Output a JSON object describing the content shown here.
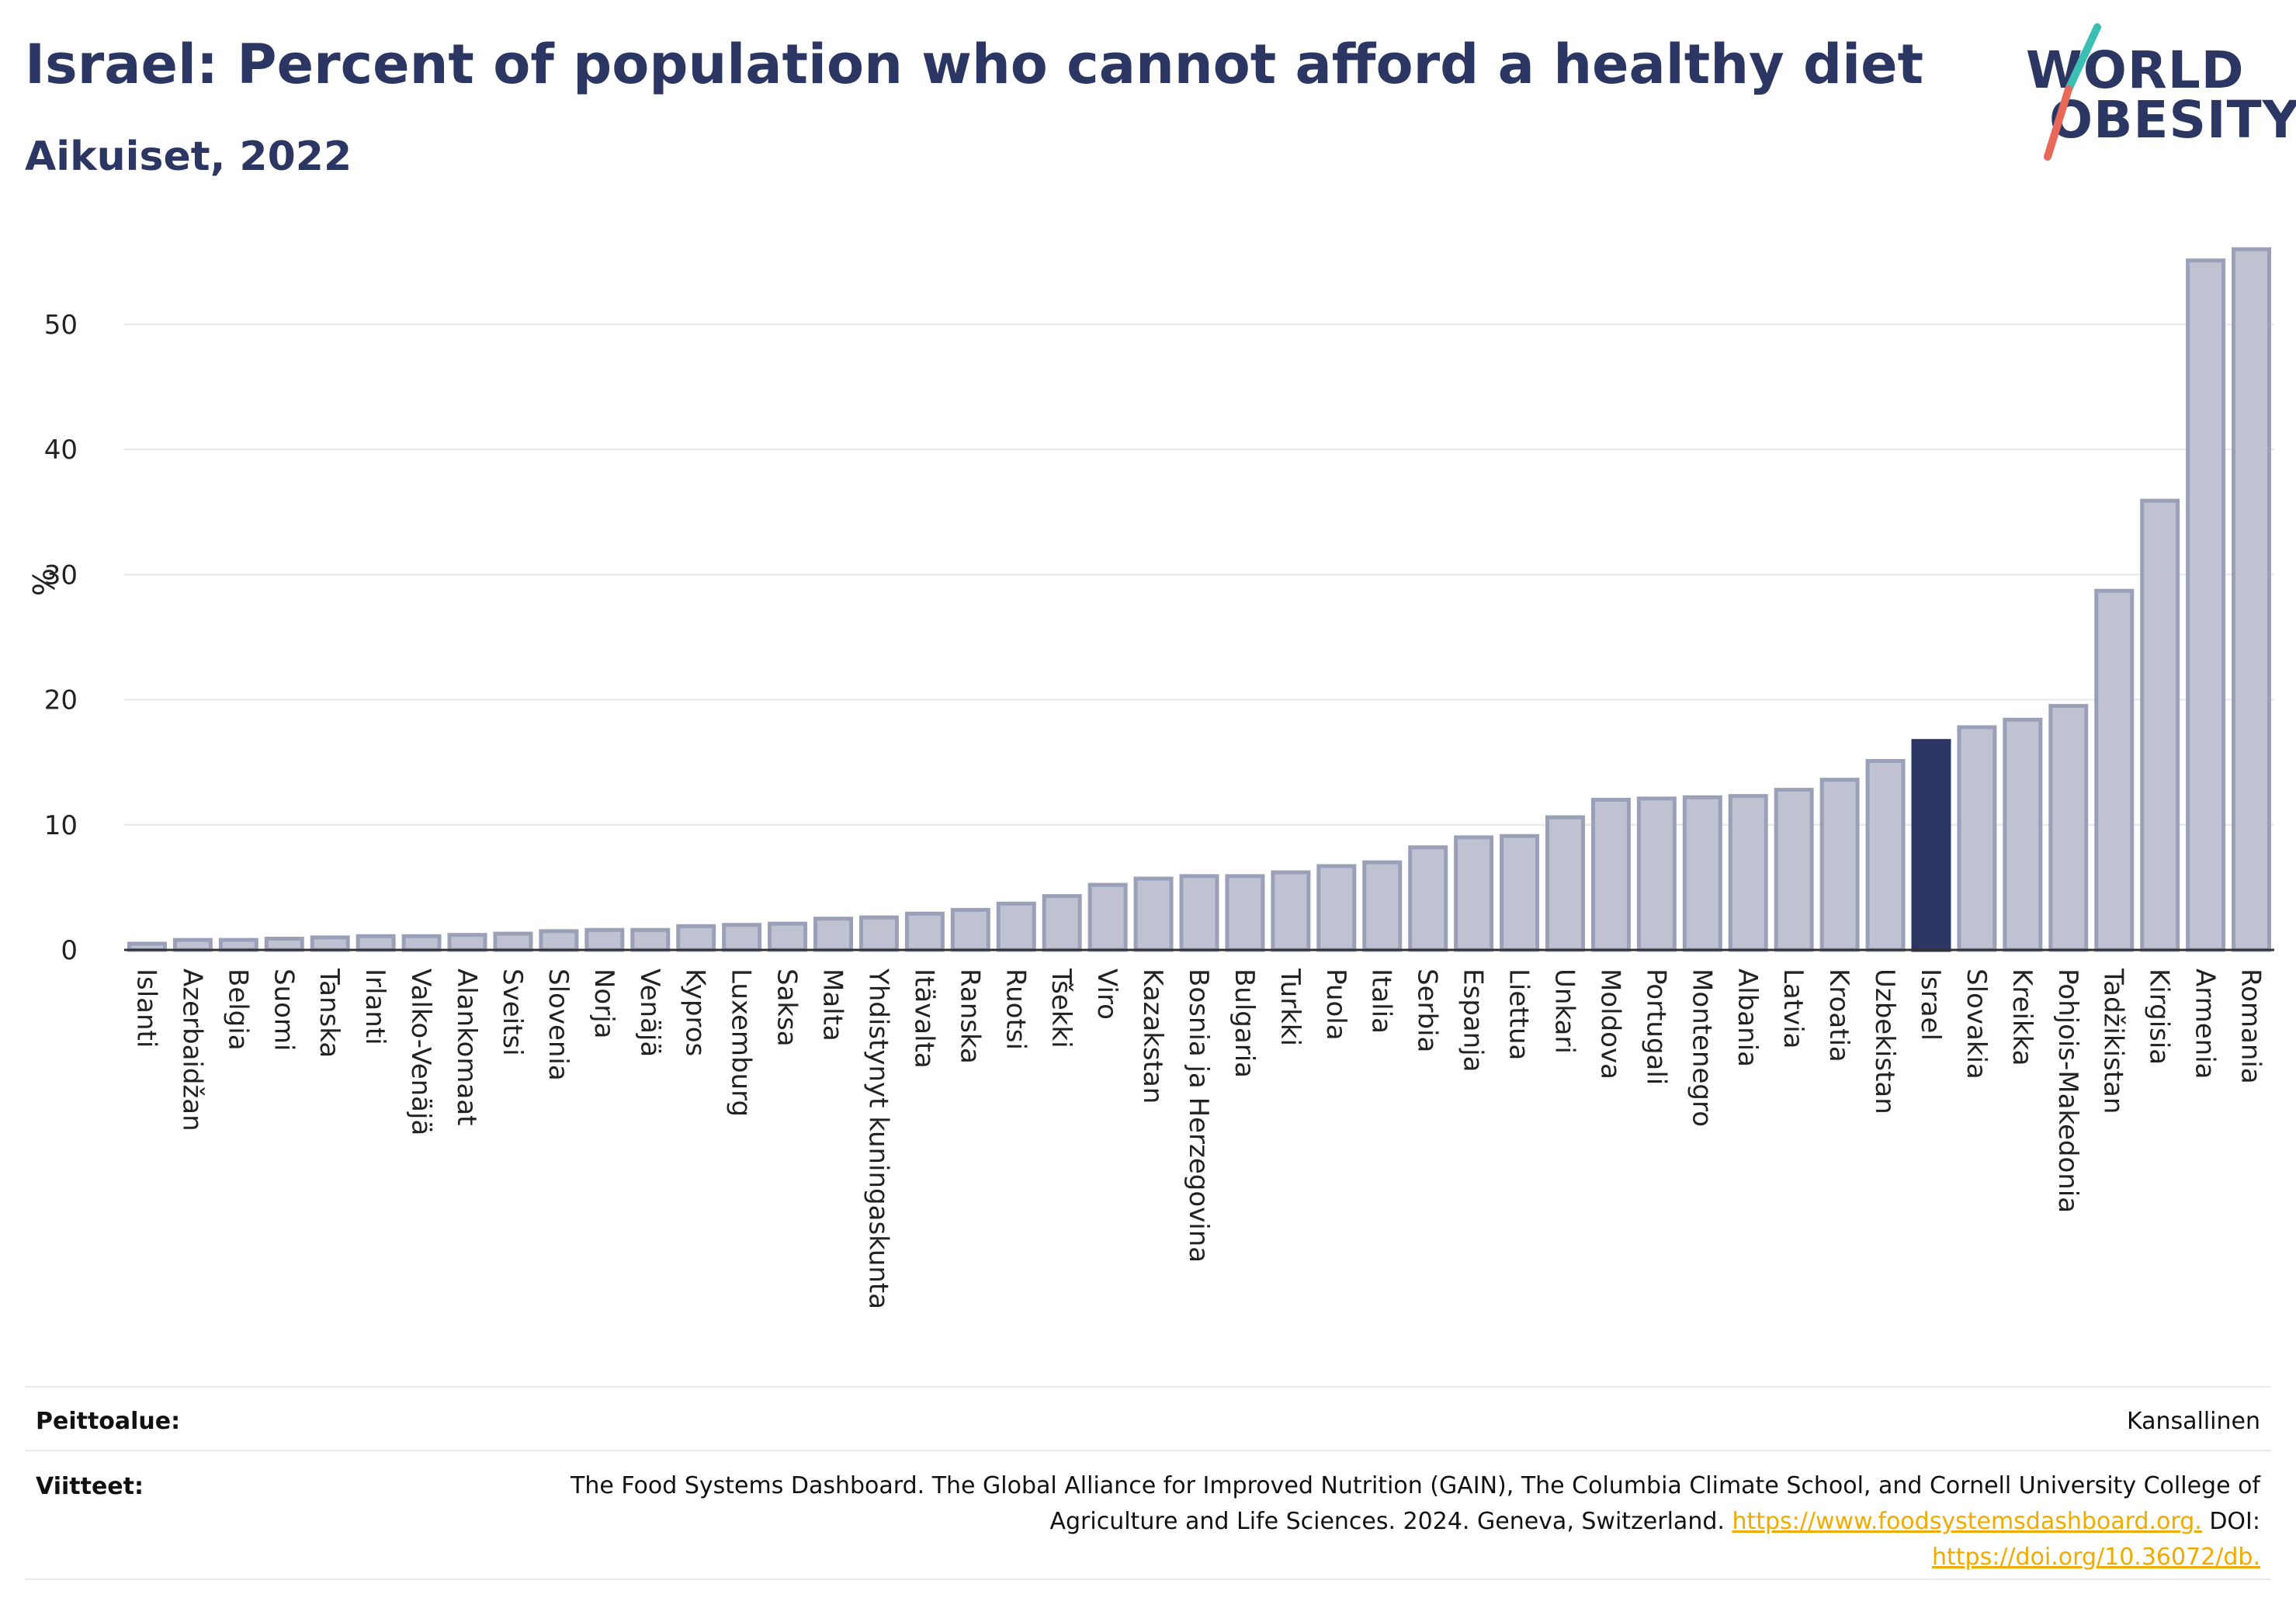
{
  "header": {
    "title": "Israel: Percent of population who cannot afford a healthy diet",
    "subtitle": "Aikuiset, 2022"
  },
  "logo": {
    "line1": "WORLD",
    "line2": "OBESITY"
  },
  "colors": {
    "bar": "#bfc3d1",
    "bar_border": "#9aa0b8",
    "highlight": "#2b3663",
    "text_dark": "#2b3663",
    "link": "#f0ab00",
    "logo_teal": "#3bbfb5",
    "logo_coral": "#e8685a"
  },
  "chart_data": {
    "type": "bar",
    "ylabel": "%",
    "ylim": [
      0,
      57
    ],
    "yticks": [
      0,
      10,
      20,
      30,
      40,
      50
    ],
    "grid": true,
    "highlight": "Israel",
    "categories": [
      "Islanti",
      "Azerbaidžan",
      "Belgia",
      "Suomi",
      "Tanska",
      "Irlanti",
      "Valko-Venäjä",
      "Alankomaat",
      "Sveitsi",
      "Slovenia",
      "Norja",
      "Venäjä",
      "Kypros",
      "Luxemburg",
      "Saksa",
      "Malta",
      "Yhdistynyt kuningaskunta",
      "Itävalta",
      "Ranska",
      "Ruotsi",
      "Tšekki",
      "Viro",
      "Kazakstan",
      "Bosnia ja Herzegovina",
      "Bulgaria",
      "Turkki",
      "Puola",
      "Italia",
      "Serbia",
      "Espanja",
      "Liettua",
      "Unkari",
      "Moldova",
      "Portugali",
      "Montenegro",
      "Albania",
      "Latvia",
      "Kroatia",
      "Uzbekistan",
      "Israel",
      "Slovakia",
      "Kreikka",
      "Pohjois-Makedonia",
      "Tadžikistan",
      "Kirgisia",
      "Armenia",
      "Romania"
    ],
    "values": [
      0.5,
      0.8,
      0.8,
      0.9,
      1.0,
      1.1,
      1.1,
      1.2,
      1.3,
      1.5,
      1.6,
      1.6,
      1.9,
      2.0,
      2.1,
      2.5,
      2.6,
      2.9,
      3.2,
      3.7,
      4.3,
      5.2,
      5.7,
      5.9,
      5.9,
      6.2,
      6.7,
      7.0,
      8.2,
      9.0,
      9.1,
      10.6,
      12.0,
      12.1,
      12.2,
      12.3,
      12.8,
      13.6,
      15.1,
      16.7,
      17.8,
      18.4,
      19.5,
      28.7,
      35.9,
      55.1,
      56.0
    ]
  },
  "footer": {
    "coverage_label": "Peittoalue:",
    "coverage_value": "Kansallinen",
    "refs_label": "Viitteet:",
    "refs_text": "The Food Systems Dashboard. The Global Alliance for Improved Nutrition (GAIN), The Columbia Climate School, and Cornell University College of Agriculture and Life Sciences. 2024. Geneva, Switzerland.",
    "refs_link1": "https://www.foodsystemsdashboard.org.",
    "refs_doi_label": "DOI:",
    "refs_link2": "https://doi.org/10.36072/db."
  }
}
